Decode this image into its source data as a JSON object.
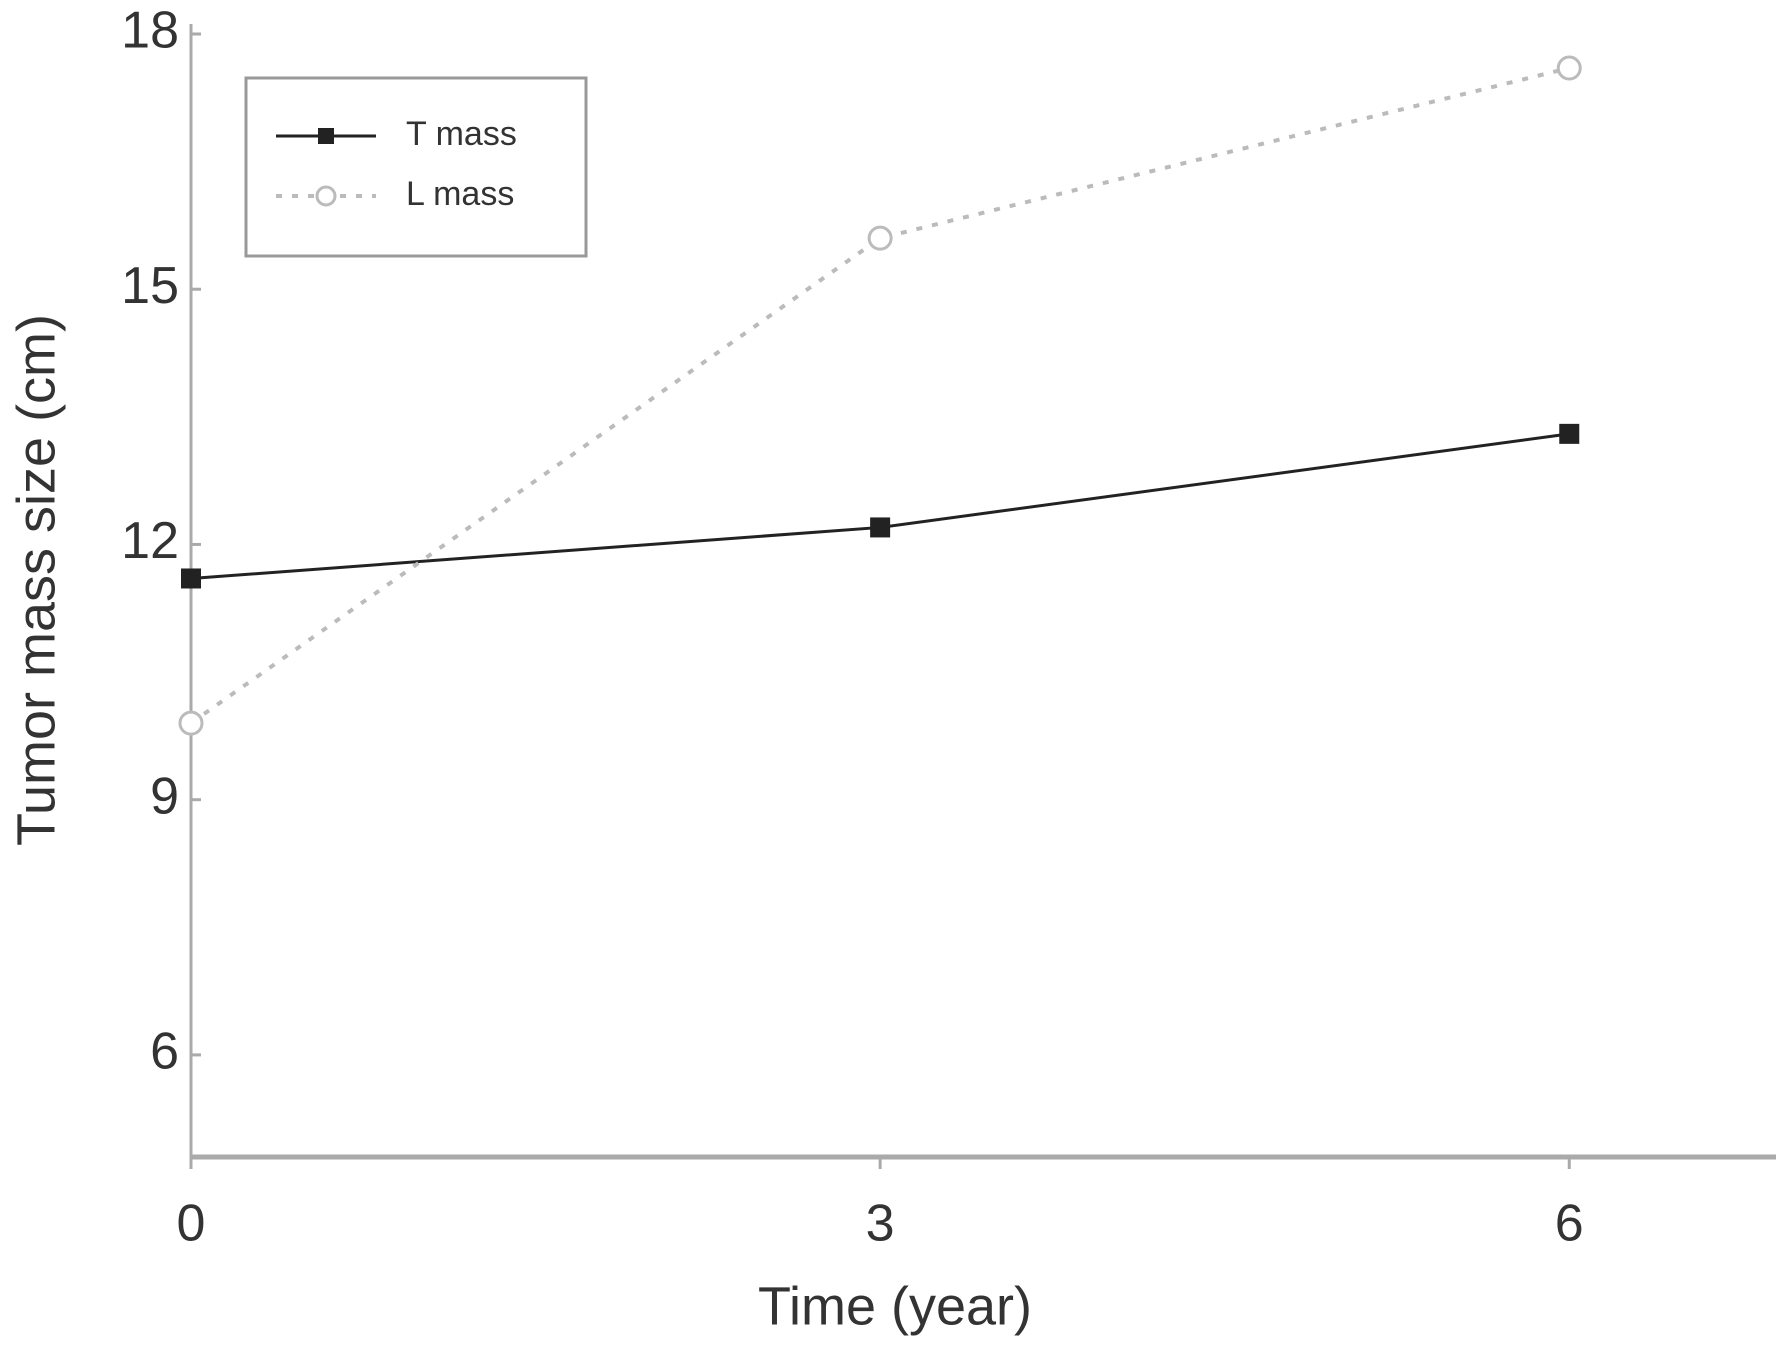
{
  "chart_data": {
    "type": "line",
    "x_label": "Time (year)",
    "y_label": "Tumor mass size (cm)",
    "x": [
      0,
      3,
      6
    ],
    "series": [
      {
        "name": "T mass",
        "color": "#222222",
        "values": [
          11.6,
          12.2,
          13.3
        ]
      },
      {
        "name": "L mass",
        "color": "#bbbbbb",
        "values": [
          9.9,
          15.6,
          17.6
        ]
      }
    ],
    "xlim": [
      0,
      6.9
    ],
    "ylim": [
      4.8,
      18
    ],
    "xticks": [
      0,
      3,
      6
    ],
    "yticks": [
      6,
      9,
      12,
      15,
      18
    ],
    "legend": "upper-left",
    "grid": false
  }
}
